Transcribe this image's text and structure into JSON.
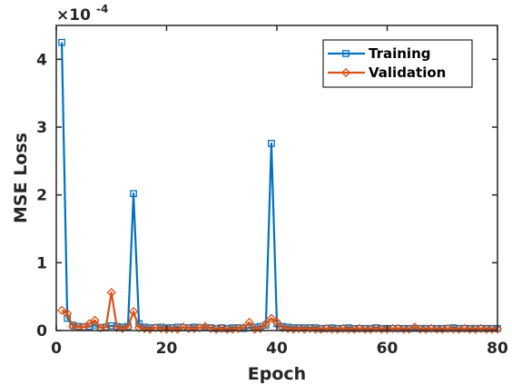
{
  "chart_data": {
    "type": "line",
    "title": "",
    "xlabel": "Epoch",
    "ylabel": "MSE Loss",
    "y_multiplier": {
      "base": "×10",
      "exponent": "-4"
    },
    "xlim": [
      0,
      80
    ],
    "ylim": [
      0,
      4.5
    ],
    "xticks": [
      0,
      20,
      40,
      60,
      80
    ],
    "yticks": [
      0,
      1,
      2,
      3,
      4
    ],
    "grid": false,
    "legend_position": "top-right",
    "x": [
      1,
      2,
      3,
      4,
      5,
      6,
      7,
      8,
      9,
      10,
      11,
      12,
      13,
      14,
      15,
      16,
      17,
      18,
      19,
      20,
      21,
      22,
      23,
      24,
      25,
      26,
      27,
      28,
      29,
      30,
      31,
      32,
      33,
      34,
      35,
      36,
      37,
      38,
      39,
      40,
      41,
      42,
      43,
      44,
      45,
      46,
      47,
      48,
      49,
      50,
      51,
      52,
      53,
      54,
      55,
      56,
      57,
      58,
      59,
      60,
      61,
      62,
      63,
      64,
      65,
      66,
      67,
      68,
      69,
      70,
      71,
      72,
      73,
      74,
      75,
      76,
      77,
      78,
      79,
      80
    ],
    "series": [
      {
        "name": "Training",
        "color": "#0072BD",
        "marker": "square",
        "values": [
          4.25,
          0.18,
          0.08,
          0.06,
          0.05,
          0.06,
          0.08,
          0.04,
          0.05,
          0.07,
          0.06,
          0.05,
          0.06,
          2.02,
          0.1,
          0.05,
          0.04,
          0.04,
          0.05,
          0.04,
          0.04,
          0.05,
          0.04,
          0.04,
          0.05,
          0.04,
          0.04,
          0.04,
          0.03,
          0.04,
          0.03,
          0.04,
          0.04,
          0.03,
          0.04,
          0.05,
          0.06,
          0.08,
          2.76,
          0.1,
          0.06,
          0.05,
          0.04,
          0.04,
          0.04,
          0.04,
          0.04,
          0.03,
          0.03,
          0.04,
          0.03,
          0.03,
          0.04,
          0.03,
          0.03,
          0.03,
          0.03,
          0.04,
          0.03,
          0.03,
          0.03,
          0.03,
          0.03,
          0.03,
          0.03,
          0.03,
          0.03,
          0.03,
          0.03,
          0.03,
          0.03,
          0.04,
          0.03,
          0.03,
          0.03,
          0.03,
          0.03,
          0.03,
          0.03,
          0.03
        ]
      },
      {
        "name": "Validation",
        "color": "#D95319",
        "marker": "diamond",
        "values": [
          0.3,
          0.25,
          0.06,
          0.05,
          0.05,
          0.1,
          0.15,
          0.04,
          0.05,
          0.56,
          0.04,
          0.03,
          0.05,
          0.28,
          0.04,
          0.03,
          0.02,
          0.04,
          0.03,
          0.02,
          0.03,
          0.02,
          0.05,
          0.03,
          0.03,
          0.04,
          0.06,
          0.03,
          0.02,
          0.03,
          0.02,
          0.02,
          0.03,
          0.04,
          0.12,
          0.02,
          0.03,
          0.1,
          0.18,
          0.12,
          0.04,
          0.03,
          0.02,
          0.03,
          0.02,
          0.03,
          0.02,
          0.02,
          0.03,
          0.02,
          0.02,
          0.03,
          0.02,
          0.02,
          0.03,
          0.02,
          0.02,
          0.03,
          0.02,
          0.02,
          0.03,
          0.03,
          0.02,
          0.02,
          0.05,
          0.02,
          0.02,
          0.03,
          0.02,
          0.02,
          0.03,
          0.02,
          0.02,
          0.03,
          0.02,
          0.02,
          0.03,
          0.02,
          0.02,
          0.02
        ]
      }
    ]
  }
}
